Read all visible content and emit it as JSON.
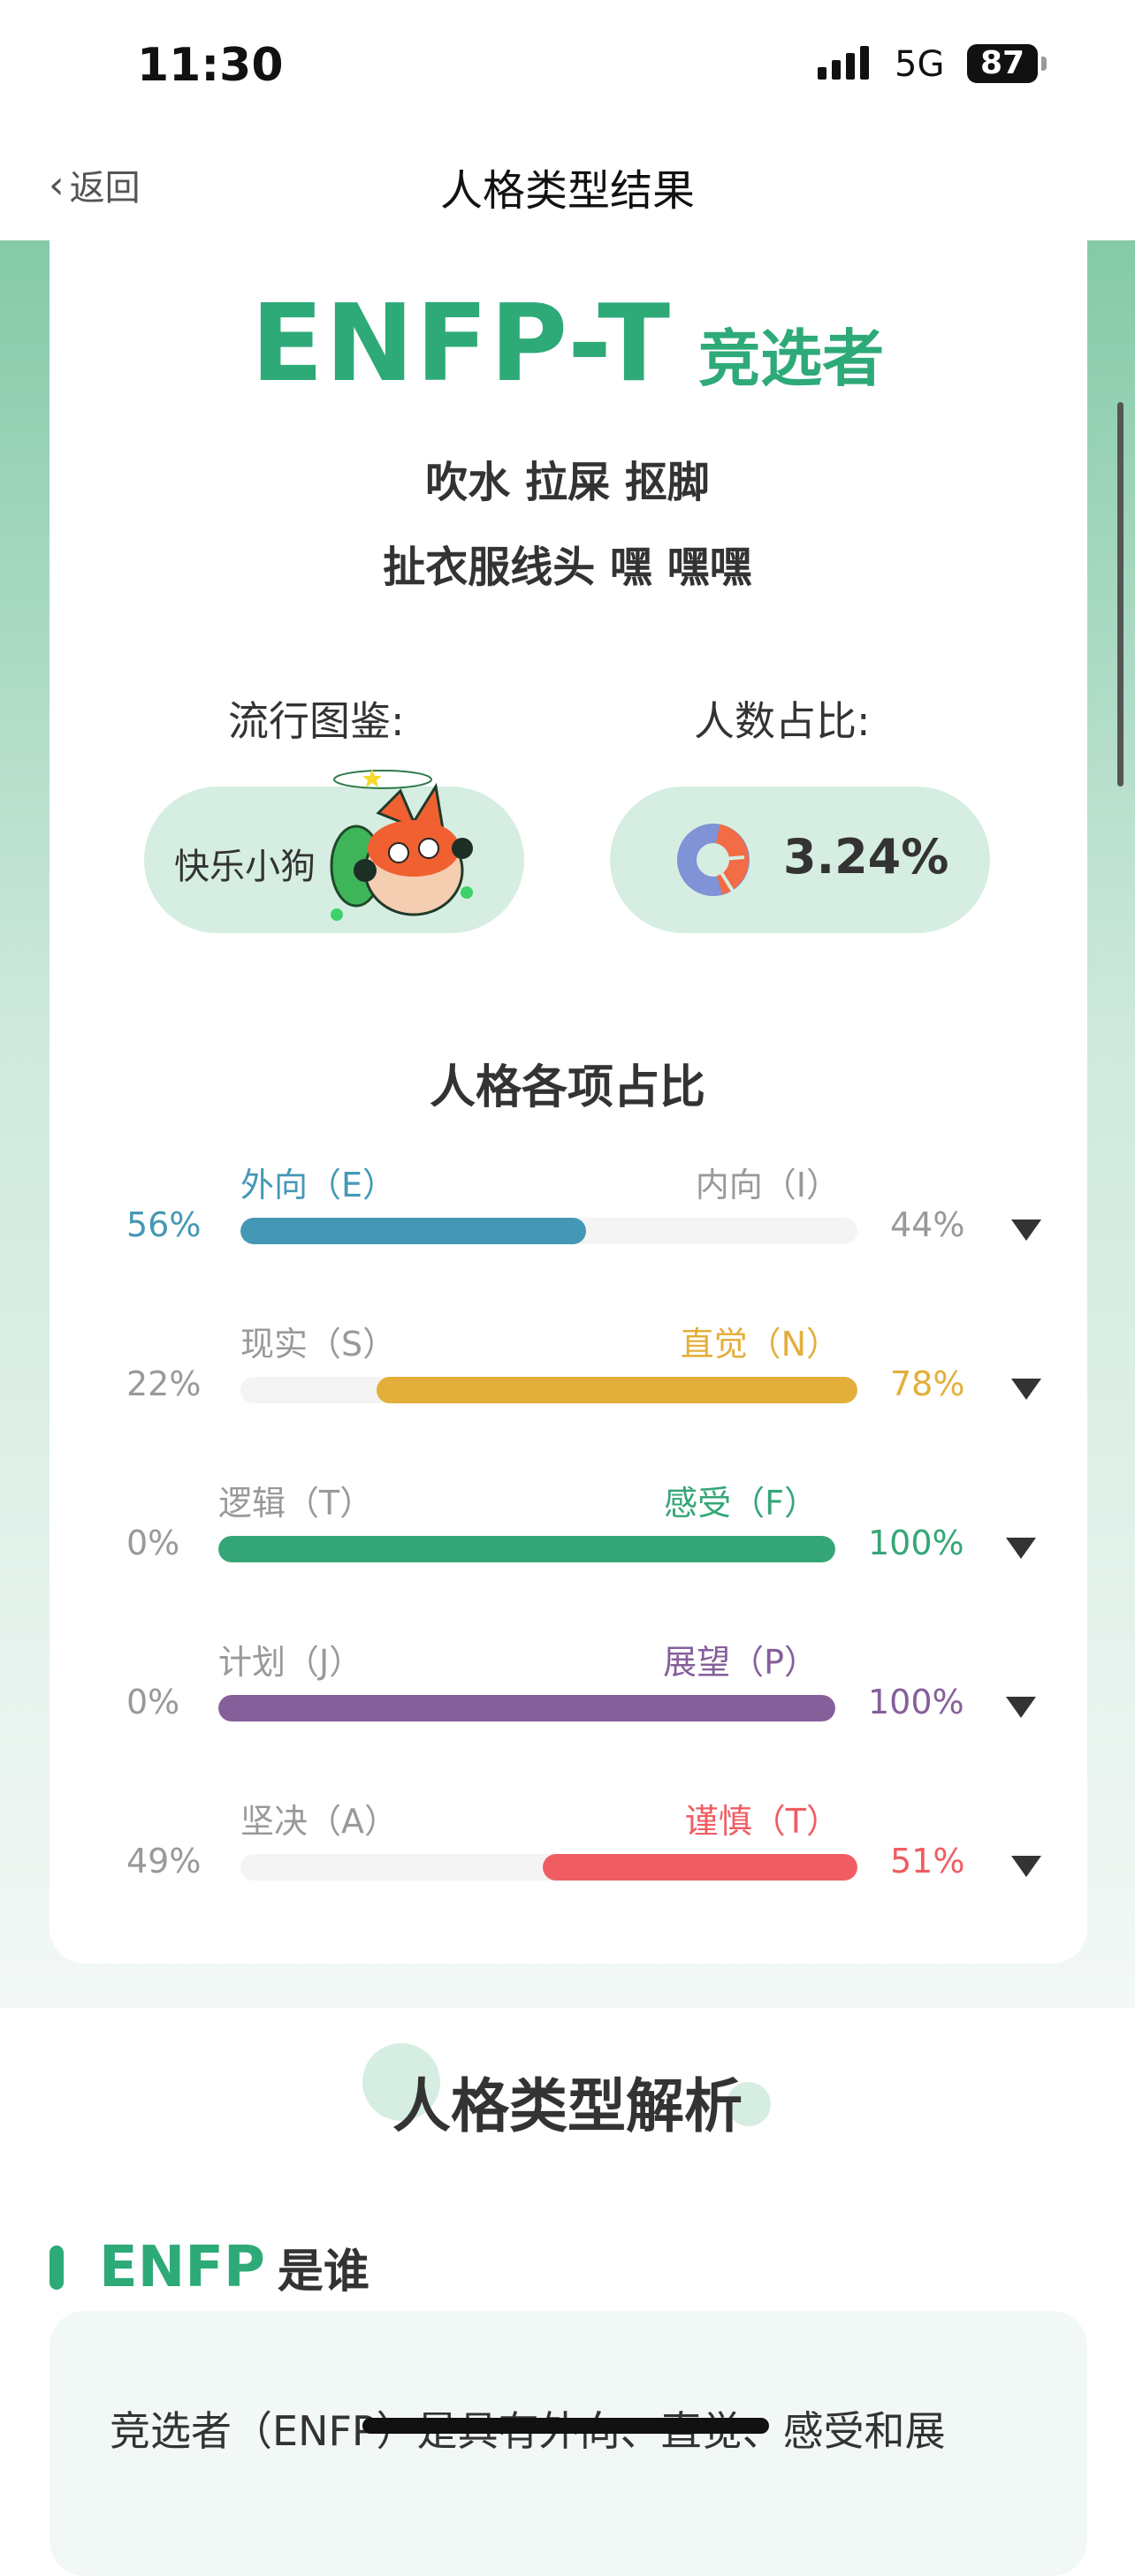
{
  "status": {
    "time": "11:30",
    "network": "5G",
    "battery": "87"
  },
  "nav": {
    "back": "返回",
    "title": "人格类型结果"
  },
  "result": {
    "code": "ENFP-T",
    "name": "竞选者",
    "tags": [
      "吹水 拉屎 抠脚",
      "扯衣服线头 嘿 嘿嘿"
    ]
  },
  "popular": {
    "label": "流行图鉴:",
    "name": "快乐小狗"
  },
  "ratio": {
    "label": "人数占比:",
    "value": "3.24%",
    "fraction": 0.0324
  },
  "traits": {
    "title": "人格各项占比",
    "rows": [
      {
        "left": "外向（E）",
        "right": "内向（I）",
        "left_pct": "56%",
        "right_pct": "44%",
        "value": 56,
        "color": "#4598b5"
      },
      {
        "left": "现实（S）",
        "right": "直觉（N）",
        "left_pct": "22%",
        "right_pct": "78%",
        "value": 22,
        "color": "#e3af3a"
      },
      {
        "left": "逻辑（T）",
        "right": "感受（F）",
        "left_pct": "0%",
        "right_pct": "100%",
        "value": 0,
        "color": "#35a677"
      },
      {
        "left": "计划（J）",
        "right": "展望（P）",
        "left_pct": "0%",
        "right_pct": "100%",
        "value": 0,
        "color": "#855f9a"
      },
      {
        "left": "坚决（A）",
        "right": "谨慎（T）",
        "left_pct": "49%",
        "right_pct": "51%",
        "value": 49,
        "color": "#ef5d63"
      }
    ]
  },
  "analysis": {
    "title": "人格类型解析",
    "who_code": "ENFP",
    "who_label": "是谁",
    "text": "竞选者（ENFP）是具有外向、直觉、感受和展"
  }
}
